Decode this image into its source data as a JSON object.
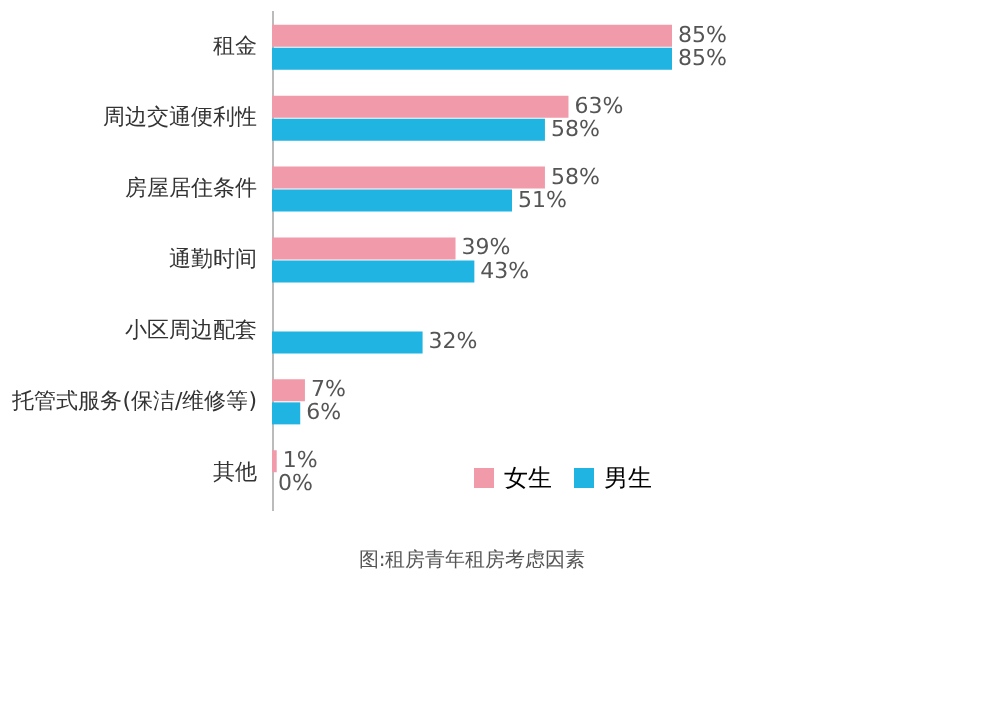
{
  "chart_data": {
    "type": "bar",
    "orientation": "horizontal",
    "categories": [
      "租金",
      "周边交通便利性",
      "房屋居住条件",
      "通勤时间",
      "小区周边配套",
      "托管式服务(保洁/维修等)",
      "其他"
    ],
    "series": [
      {
        "name": "女生",
        "color": "#f09aaa",
        "values": [
          85,
          63,
          58,
          39,
          null,
          7,
          1
        ],
        "value_labels": [
          "85%",
          "63%",
          "58%",
          "39%",
          null,
          "7%",
          "1%"
        ]
      },
      {
        "name": "男生",
        "color": "#1fb4e2",
        "values": [
          85,
          58,
          51,
          43,
          32,
          6,
          0
        ],
        "value_labels": [
          "85%",
          "58%",
          "51%",
          "43%",
          "32%",
          "6%",
          "0%"
        ]
      }
    ],
    "tick_labels": "y",
    "grid": false,
    "legend": "bottom right",
    "annotations": [
      "图:租房青年租房考虑因素"
    ]
  }
}
